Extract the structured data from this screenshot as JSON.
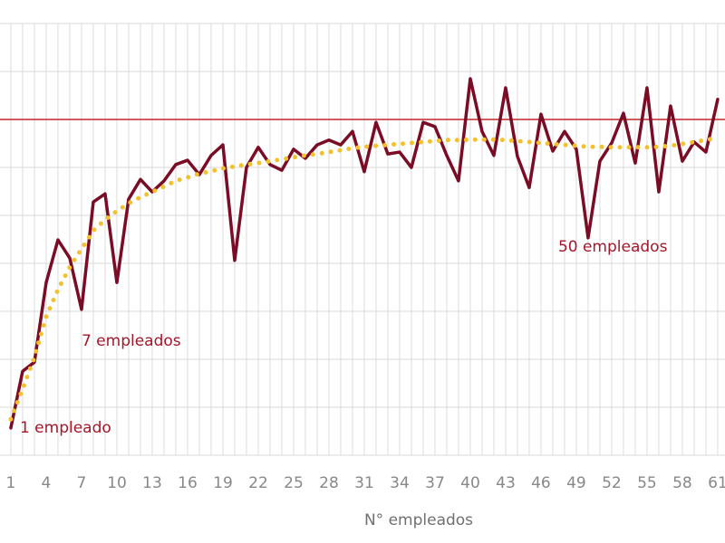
{
  "chart_data": {
    "type": "line",
    "x_label": "N° empleados",
    "x": [
      1,
      2,
      3,
      4,
      5,
      6,
      7,
      8,
      9,
      10,
      11,
      12,
      13,
      14,
      15,
      16,
      17,
      18,
      19,
      20,
      21,
      22,
      23,
      24,
      25,
      26,
      27,
      28,
      29,
      30,
      31,
      32,
      33,
      34,
      35,
      36,
      37,
      38,
      39,
      40,
      41,
      42,
      43,
      44,
      45,
      46,
      47,
      48,
      49,
      50,
      51,
      52,
      53,
      54,
      55,
      56,
      57,
      58,
      59,
      60,
      61
    ],
    "series": [
      {
        "color": "#7b0c26",
        "style": "solid",
        "values": [
          0.57,
          1.75,
          1.94,
          3.6,
          4.49,
          4.11,
          3.04,
          5.28,
          5.45,
          3.6,
          5.34,
          5.75,
          5.49,
          5.72,
          6.06,
          6.15,
          5.85,
          6.25,
          6.47,
          4.06,
          6.0,
          6.42,
          6.06,
          5.94,
          6.38,
          6.19,
          6.47,
          6.57,
          6.47,
          6.75,
          5.91,
          6.94,
          6.28,
          6.32,
          6.0,
          6.94,
          6.85,
          6.25,
          5.72,
          7.85,
          6.75,
          6.25,
          7.66,
          6.23,
          5.58,
          7.11,
          6.34,
          6.75,
          6.38,
          4.53,
          6.13,
          6.51,
          7.13,
          6.09,
          7.66,
          5.49,
          7.28,
          6.13,
          6.53,
          6.32,
          7.42
        ]
      },
      {
        "color": "#f2c12e",
        "style": "dotted",
        "values": [
          0.75,
          1.38,
          2.04,
          2.89,
          3.45,
          3.92,
          4.3,
          4.68,
          4.91,
          5.09,
          5.25,
          5.38,
          5.49,
          5.6,
          5.72,
          5.79,
          5.87,
          5.92,
          5.98,
          6.02,
          6.06,
          6.09,
          6.13,
          6.17,
          6.21,
          6.25,
          6.28,
          6.32,
          6.36,
          6.4,
          6.43,
          6.45,
          6.47,
          6.49,
          6.51,
          6.53,
          6.55,
          6.57,
          6.57,
          6.58,
          6.58,
          6.58,
          6.57,
          6.55,
          6.53,
          6.51,
          6.49,
          6.47,
          6.45,
          6.43,
          6.43,
          6.42,
          6.42,
          6.42,
          6.42,
          6.43,
          6.45,
          6.49,
          6.53,
          6.57,
          6.62
        ]
      }
    ],
    "reference_line": {
      "value": 7,
      "color": "#c0272d"
    },
    "annotations": [
      {
        "text": "1 empleado",
        "x": 1
      },
      {
        "text": "7 empleados",
        "x": 7
      },
      {
        "text": "50 empleados",
        "x": 50
      }
    ],
    "annotation_color": "#a3182c",
    "xlim": [
      0.08,
      61.62
    ],
    "xticks": [
      1,
      4,
      7,
      10,
      13,
      16,
      19,
      22,
      25,
      28,
      31,
      34,
      37,
      40,
      43,
      46,
      49,
      52,
      55,
      58,
      61
    ],
    "ylim": [
      0,
      9
    ],
    "yticks": [
      0,
      1,
      2,
      3,
      4,
      5,
      6,
      7,
      8,
      9
    ],
    "grid": true
  }
}
